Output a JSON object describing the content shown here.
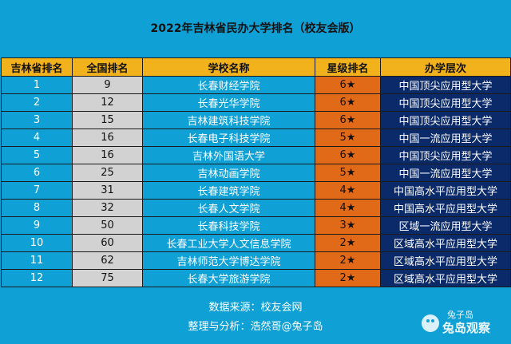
{
  "title": "2022年吉林省民办大学排名（校友会版）",
  "headers": {
    "province_rank": "吉林省排名",
    "national_rank": "全国排名",
    "school_name": "学校名称",
    "star_rank": "星级排名",
    "level": "办学层次"
  },
  "rows": [
    {
      "province_rank": "1",
      "national_rank": "9",
      "school_name": "长春财经学院",
      "star_rank": "6★",
      "level": "中国顶尖应用型大学"
    },
    {
      "province_rank": "2",
      "national_rank": "12",
      "school_name": "长春光华学院",
      "star_rank": "6★",
      "level": "中国顶尖应用型大学"
    },
    {
      "province_rank": "3",
      "national_rank": "15",
      "school_name": "吉林建筑科技学院",
      "star_rank": "6★",
      "level": "中国顶尖应用型大学"
    },
    {
      "province_rank": "4",
      "national_rank": "16",
      "school_name": "长春电子科技学院",
      "star_rank": "5★",
      "level": "中国一流应用型大学"
    },
    {
      "province_rank": "5",
      "national_rank": "16",
      "school_name": "吉林外国语大学",
      "star_rank": "6★",
      "level": "中国顶尖应用型大学"
    },
    {
      "province_rank": "6",
      "national_rank": "25",
      "school_name": "吉林动画学院",
      "star_rank": "5★",
      "level": "中国一流应用型大学"
    },
    {
      "province_rank": "7",
      "national_rank": "31",
      "school_name": "长春建筑学院",
      "star_rank": "4★",
      "level": "中国高水平应用型大学"
    },
    {
      "province_rank": "8",
      "national_rank": "32",
      "school_name": "长春人文学院",
      "star_rank": "4★",
      "level": "中国高水平应用型大学"
    },
    {
      "province_rank": "9",
      "national_rank": "50",
      "school_name": "长春科技学院",
      "star_rank": "3★",
      "level": "区域一流应用型大学"
    },
    {
      "province_rank": "10",
      "national_rank": "60",
      "school_name": "长春工业大学人文信息学院",
      "star_rank": "2★",
      "level": "区域高水平应用型大学"
    },
    {
      "province_rank": "11",
      "national_rank": "62",
      "school_name": "吉林师范大学博达学院",
      "star_rank": "2★",
      "level": "区域高水平应用型大学"
    },
    {
      "province_rank": "12",
      "national_rank": "75",
      "school_name": "长春大学旅游学院",
      "star_rank": "2★",
      "level": "区域高水平应用型大学"
    }
  ],
  "footer": {
    "source": "数据来源：校友会网",
    "author": "整理与分析：浩然哥@兔子岛"
  },
  "watermark": {
    "icon": "rabbit-icon",
    "small_text": "兔子岛",
    "big_text": "兔岛观察"
  },
  "colors": {
    "background": "#0fa0d6",
    "header": "#f2b21b",
    "national_rank_cell": "#d2d2d2",
    "star_cell": "#e06a17",
    "level_cell": "#0b2a6a"
  }
}
